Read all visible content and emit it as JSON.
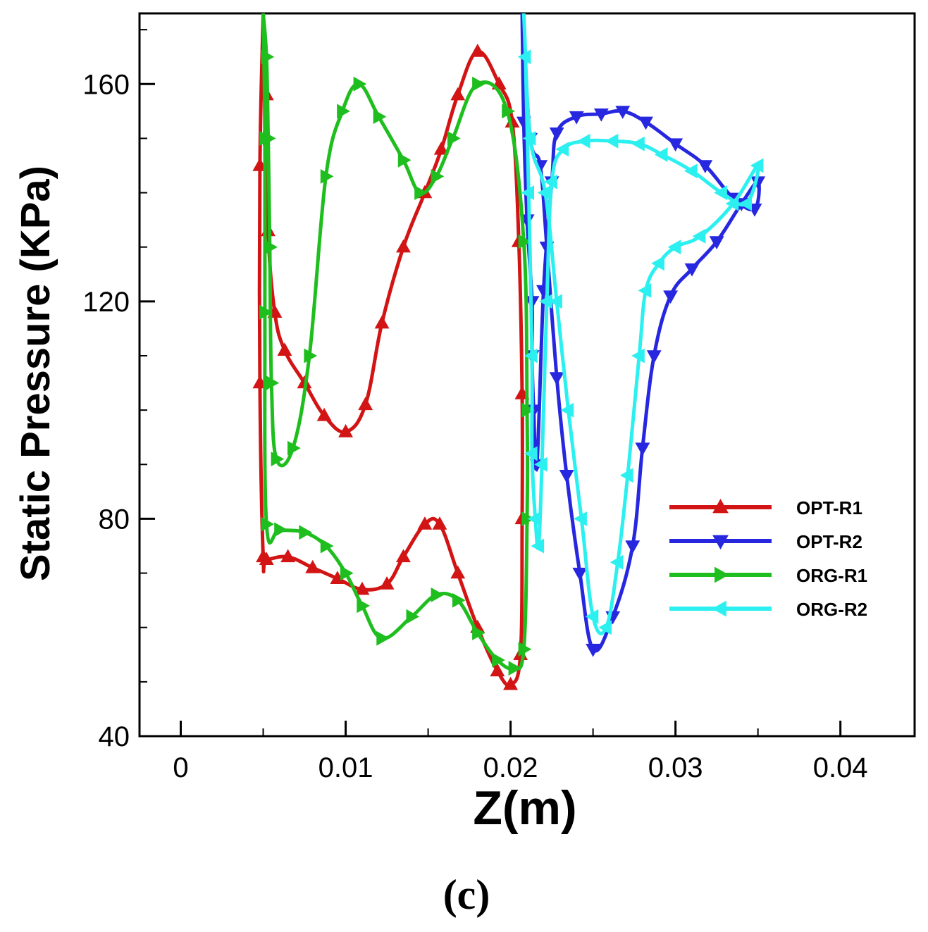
{
  "chart_data": {
    "type": "line",
    "xlabel": "Z(m)",
    "ylabel": "Static Pressure (KPa)",
    "panel_label": "(c)",
    "xlim": [
      -0.0025,
      0.0445
    ],
    "ylim": [
      40,
      173
    ],
    "xticks": [
      0,
      0.01,
      0.02,
      0.03,
      0.04
    ],
    "xtick_labels": [
      "0",
      "0.01",
      "0.02",
      "0.03",
      "0.04"
    ],
    "yticks": [
      40,
      80,
      120,
      160
    ],
    "ytick_labels": [
      "40",
      "80",
      "120",
      "160"
    ],
    "grid": false,
    "legend_position": "right",
    "series": [
      {
        "name": "OPT-R1",
        "color": "#d21414",
        "marker": "triangle-up",
        "points": [
          [
            0.005,
            173
          ],
          [
            0.0048,
            145
          ],
          [
            0.0048,
            105
          ],
          [
            0.005,
            73
          ],
          [
            0.0052,
            72.5
          ],
          [
            0.0065,
            73
          ],
          [
            0.008,
            71
          ],
          [
            0.0095,
            69
          ],
          [
            0.011,
            67
          ],
          [
            0.0125,
            68
          ],
          [
            0.0135,
            73
          ],
          [
            0.0148,
            79
          ],
          [
            0.0157,
            79
          ],
          [
            0.0168,
            70
          ],
          [
            0.018,
            60
          ],
          [
            0.0192,
            52
          ],
          [
            0.02,
            49.5
          ],
          [
            0.0206,
            55
          ],
          [
            0.0207,
            80
          ],
          [
            0.0207,
            103
          ],
          [
            0.0205,
            131
          ],
          [
            0.0201,
            153
          ],
          [
            0.0193,
            160
          ],
          [
            0.018,
            166
          ],
          [
            0.0168,
            158
          ],
          [
            0.0158,
            148
          ],
          [
            0.0148,
            140
          ],
          [
            0.0135,
            130
          ],
          [
            0.0122,
            116
          ],
          [
            0.0112,
            101
          ],
          [
            0.01,
            96
          ],
          [
            0.0087,
            99
          ],
          [
            0.0075,
            105
          ],
          [
            0.0063,
            111
          ],
          [
            0.0057,
            118
          ],
          [
            0.0053,
            133
          ],
          [
            0.0052,
            158
          ],
          [
            0.005,
            173
          ]
        ]
      },
      {
        "name": "OPT-R2",
        "color": "#2727e0",
        "marker": "triangle-down",
        "points": [
          [
            0.0207,
            173
          ],
          [
            0.0208,
            153
          ],
          [
            0.021,
            135
          ],
          [
            0.0213,
            120
          ],
          [
            0.0213,
            110
          ],
          [
            0.0214,
            100
          ],
          [
            0.0216,
            90
          ],
          [
            0.022,
            122
          ],
          [
            0.0225,
            142
          ],
          [
            0.0228,
            151
          ],
          [
            0.024,
            154
          ],
          [
            0.0255,
            154.5
          ],
          [
            0.0268,
            155
          ],
          [
            0.0282,
            153
          ],
          [
            0.03,
            149
          ],
          [
            0.0318,
            145
          ],
          [
            0.0335,
            139
          ],
          [
            0.0348,
            137
          ],
          [
            0.035,
            142
          ],
          [
            0.034,
            138
          ],
          [
            0.0325,
            131
          ],
          [
            0.031,
            126
          ],
          [
            0.0297,
            121
          ],
          [
            0.0287,
            110
          ],
          [
            0.028,
            93
          ],
          [
            0.0274,
            75
          ],
          [
            0.0262,
            62
          ],
          [
            0.025,
            56
          ],
          [
            0.0242,
            70
          ],
          [
            0.0234,
            88
          ],
          [
            0.0228,
            106
          ],
          [
            0.0222,
            130
          ],
          [
            0.0218,
            145
          ],
          [
            0.0212,
            150
          ],
          [
            0.0207,
            173
          ]
        ]
      },
      {
        "name": "ORG-R1",
        "color": "#1fbe1f",
        "marker": "triangle-right",
        "points": [
          [
            0.005,
            173
          ],
          [
            0.0051,
            150
          ],
          [
            0.0051,
            118
          ],
          [
            0.0052,
            79
          ],
          [
            0.006,
            78
          ],
          [
            0.0075,
            77.5
          ],
          [
            0.0088,
            75
          ],
          [
            0.01,
            70
          ],
          [
            0.011,
            64
          ],
          [
            0.0122,
            58
          ],
          [
            0.014,
            62
          ],
          [
            0.0155,
            66
          ],
          [
            0.0168,
            65
          ],
          [
            0.018,
            59
          ],
          [
            0.0192,
            54
          ],
          [
            0.0202,
            52.5
          ],
          [
            0.0208,
            56
          ],
          [
            0.021,
            80
          ],
          [
            0.021,
            100
          ],
          [
            0.0208,
            131
          ],
          [
            0.0198,
            155
          ],
          [
            0.018,
            160
          ],
          [
            0.0165,
            150
          ],
          [
            0.0155,
            143
          ],
          [
            0.0145,
            140
          ],
          [
            0.0135,
            146
          ],
          [
            0.012,
            154
          ],
          [
            0.0108,
            160
          ],
          [
            0.0098,
            155
          ],
          [
            0.0088,
            143
          ],
          [
            0.0078,
            110
          ],
          [
            0.0068,
            93
          ],
          [
            0.0058,
            91
          ],
          [
            0.0055,
            105
          ],
          [
            0.0054,
            130
          ],
          [
            0.0053,
            150
          ],
          [
            0.0052,
            165
          ],
          [
            0.005,
            173
          ]
        ]
      },
      {
        "name": "ORG-R2",
        "color": "#2cf0f0",
        "marker": "triangle-left",
        "points": [
          [
            0.0208,
            173
          ],
          [
            0.0209,
            165
          ],
          [
            0.0211,
            140
          ],
          [
            0.0213,
            110
          ],
          [
            0.0213,
            92
          ],
          [
            0.0215,
            80
          ],
          [
            0.0217,
            75
          ],
          [
            0.0219,
            90
          ],
          [
            0.0222,
            120
          ],
          [
            0.0225,
            142
          ],
          [
            0.0232,
            148
          ],
          [
            0.0245,
            149.5
          ],
          [
            0.0262,
            149.5
          ],
          [
            0.0278,
            149
          ],
          [
            0.0292,
            147
          ],
          [
            0.031,
            144
          ],
          [
            0.0328,
            140
          ],
          [
            0.0343,
            138
          ],
          [
            0.035,
            145
          ],
          [
            0.0335,
            138
          ],
          [
            0.0315,
            132
          ],
          [
            0.03,
            130
          ],
          [
            0.029,
            127
          ],
          [
            0.0282,
            122
          ],
          [
            0.0278,
            110
          ],
          [
            0.0271,
            88
          ],
          [
            0.0265,
            72
          ],
          [
            0.0258,
            60
          ],
          [
            0.025,
            62
          ],
          [
            0.0243,
            80
          ],
          [
            0.0235,
            100
          ],
          [
            0.0228,
            120
          ],
          [
            0.0221,
            140
          ],
          [
            0.0212,
            150
          ],
          [
            0.0208,
            173
          ]
        ]
      }
    ]
  }
}
